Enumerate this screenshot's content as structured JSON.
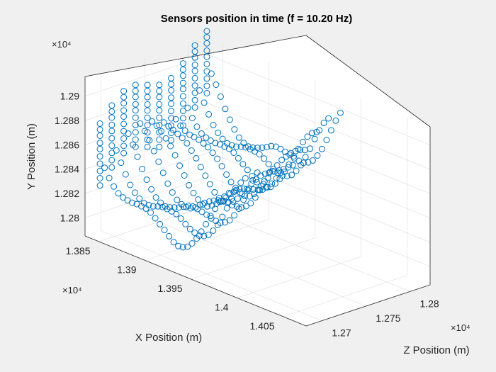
{
  "chart_data": {
    "type": "scatter",
    "dimensions": 3,
    "title": "Sensors position in time (f = 10.20 Hz)",
    "xlabel": "X Position (m)",
    "ylabel": "Y Position (m)",
    "zlabel": "Z Position (m)",
    "x_axis": {
      "multiplier": "×10⁴",
      "ticks": [
        "1.385",
        "1.39",
        "1.395",
        "1.4",
        "1.405"
      ],
      "lim": [
        1.3835,
        1.4075
      ]
    },
    "y_axis": {
      "multiplier": "×10⁴",
      "ticks": [
        "1.28",
        "1.282",
        "1.284",
        "1.286",
        "1.288",
        "1.29"
      ],
      "lim": [
        1.2785,
        1.2915
      ]
    },
    "z_axis": {
      "multiplier": "×10⁴",
      "ticks": [
        "1.27",
        "1.275",
        "1.28"
      ],
      "lim": [
        1.2682,
        1.2823
      ]
    },
    "grid": true,
    "marker": "open-circle",
    "color": "#0072bd",
    "series": [
      {
        "values": [
          [
            1.3845,
            1.2917,
            1.281
          ],
          [
            1.3845,
            1.2912,
            1.281
          ],
          [
            1.3845,
            1.2907,
            1.281
          ],
          [
            1.3845,
            1.2901,
            1.281
          ],
          [
            1.3845,
            1.2896,
            1.281
          ],
          [
            1.3845,
            1.289,
            1.281
          ],
          [
            1.3845,
            1.2884,
            1.281
          ],
          [
            1.3845,
            1.2878,
            1.281
          ],
          [
            1.3845,
            1.2872,
            1.281
          ],
          [
            1.3845,
            1.2866,
            1.281
          ],
          [
            1.385,
            1.2885,
            1.281
          ],
          [
            1.3855,
            1.288,
            1.281
          ],
          [
            1.386,
            1.2875,
            1.281
          ],
          [
            1.3865,
            1.287,
            1.281
          ],
          [
            1.387,
            1.2866,
            1.281
          ],
          [
            1.3875,
            1.2862,
            1.281
          ],
          [
            1.388,
            1.2858,
            1.281
          ],
          [
            1.3885,
            1.2855,
            1.281
          ],
          [
            1.389,
            1.2852,
            1.281
          ],
          [
            1.3895,
            1.285,
            1.281
          ],
          [
            1.39,
            1.2848,
            1.281
          ],
          [
            1.3905,
            1.2846,
            1.281
          ],
          [
            1.391,
            1.2845,
            1.281
          ],
          [
            1.3915,
            1.2845,
            1.281
          ],
          [
            1.392,
            1.2845,
            1.281
          ],
          [
            1.3925,
            1.2845,
            1.281
          ],
          [
            1.393,
            1.2846,
            1.281
          ],
          [
            1.3935,
            1.2848,
            1.281
          ],
          [
            1.394,
            1.285,
            1.281
          ],
          [
            1.3945,
            1.2853,
            1.281
          ],
          [
            1.395,
            1.2856,
            1.281
          ],
          [
            1.3955,
            1.286,
            1.281
          ],
          [
            1.396,
            1.2864,
            1.281
          ],
          [
            1.3965,
            1.2869,
            1.281
          ],
          [
            1.397,
            1.2874,
            1.281
          ],
          [
            1.3975,
            1.288,
            1.281
          ],
          [
            1.398,
            1.2886,
            1.281
          ],
          [
            1.3985,
            1.2892,
            1.281
          ],
          [
            1.399,
            1.2897,
            1.281
          ]
        ]
      }
    ]
  }
}
